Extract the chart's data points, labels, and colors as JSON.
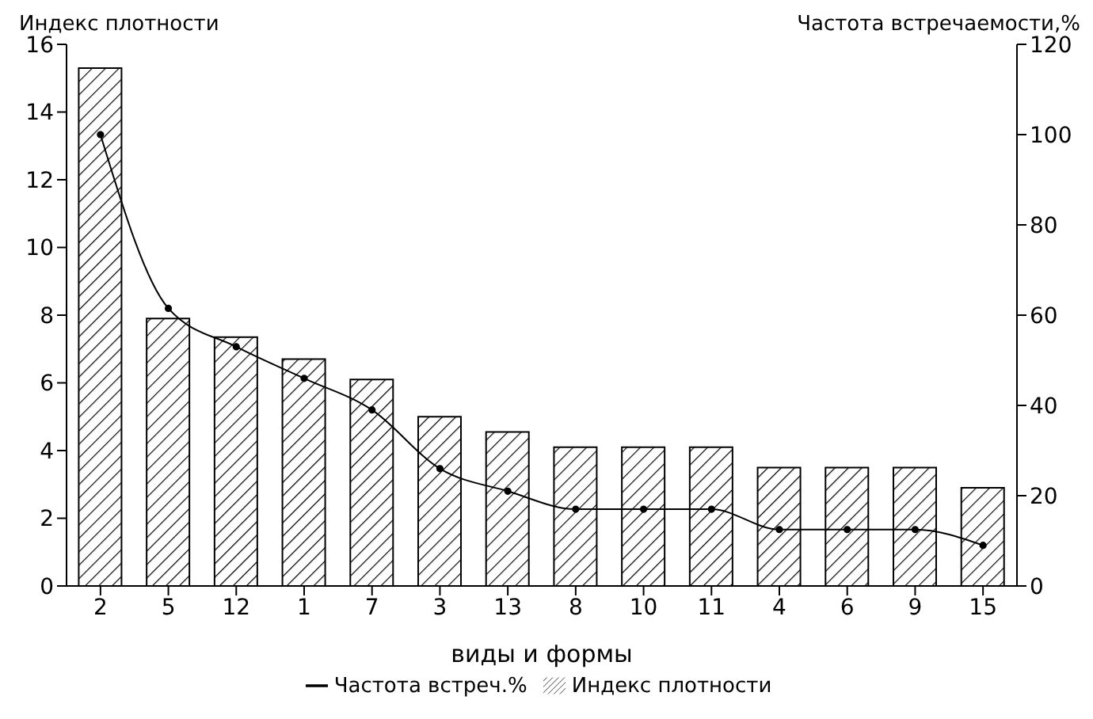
{
  "chart_data": {
    "type": "bar",
    "ylabel": "Индекс плотности",
    "y2label": "Частота встречаемости,%",
    "xlabel": "виды и формы",
    "categories": [
      "2",
      "5",
      "12",
      "1",
      "7",
      "3",
      "13",
      "8",
      "10",
      "11",
      "4",
      "6",
      "9",
      "15"
    ],
    "series": [
      {
        "name": "Частота встреч.%",
        "type": "line",
        "axis": "y2",
        "color": "#000000",
        "marker": "circle",
        "values": [
          100,
          61.5,
          53,
          46,
          39,
          26,
          21,
          17,
          17,
          17,
          12.5,
          12.5,
          12.5,
          9
        ]
      },
      {
        "name": "Индекс плотности",
        "color": "#000000",
        "values": [
          15.3,
          7.9,
          7.35,
          6.7,
          6.1,
          5.0,
          4.55,
          4.1,
          4.1,
          4.1,
          3.5,
          3.5,
          3.5,
          2.9
        ]
      }
    ],
    "ylim": [
      0,
      16
    ],
    "yticks": [
      0,
      2,
      4,
      6,
      8,
      10,
      12,
      14,
      16
    ],
    "y2lim": [
      0,
      120
    ],
    "y2ticks": [
      0,
      20,
      40,
      60,
      80,
      100,
      120
    ],
    "legend": "bottom",
    "grid": false
  }
}
